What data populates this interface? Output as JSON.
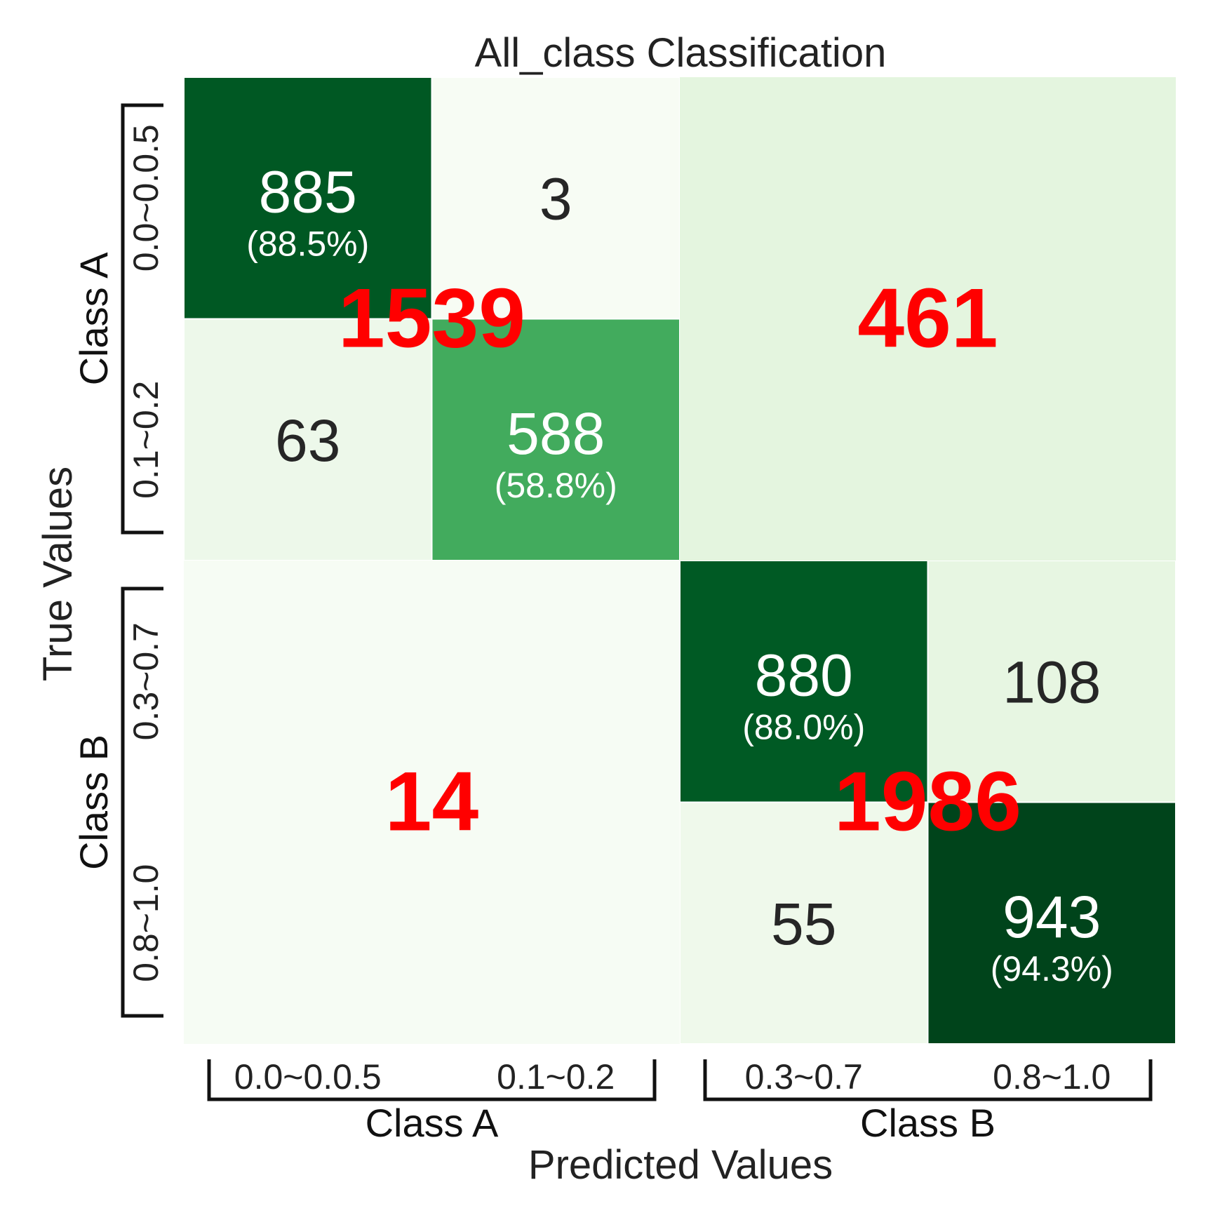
{
  "chart_data": {
    "type": "heatmap",
    "title": "All_class Classification",
    "xlabel": "Predicted Values",
    "ylabel": "True Values",
    "groups": [
      "Class A",
      "Class B"
    ],
    "x_tick_labels": [
      "0.0~0.0.5",
      "0.1~0.2",
      "0.3~0.7",
      "0.8~1.0"
    ],
    "y_tick_labels": [
      "0.0~0.0.5",
      "0.1~0.2",
      "0.3~0.7",
      "0.8~1.0"
    ],
    "cells": [
      {
        "row": 0,
        "col": 0,
        "value": 885,
        "percent": "(88.5%)"
      },
      {
        "row": 0,
        "col": 1,
        "value": 3
      },
      {
        "row": 1,
        "col": 0,
        "value": 63
      },
      {
        "row": 1,
        "col": 1,
        "value": 588,
        "percent": "(58.8%)"
      },
      {
        "row": 2,
        "col": 2,
        "value": 880,
        "percent": "(88.0%)"
      },
      {
        "row": 2,
        "col": 3,
        "value": 108
      },
      {
        "row": 3,
        "col": 2,
        "value": 55
      },
      {
        "row": 3,
        "col": 3,
        "value": 943,
        "percent": "(94.3%)"
      }
    ],
    "block_totals": [
      {
        "row_group": 0,
        "col_group": 0,
        "value": 1539
      },
      {
        "row_group": 0,
        "col_group": 1,
        "value": 461
      },
      {
        "row_group": 1,
        "col_group": 0,
        "value": 14
      },
      {
        "row_group": 1,
        "col_group": 1,
        "value": 1986
      }
    ],
    "colormap": "Greens",
    "total_color": "#ff0000"
  }
}
